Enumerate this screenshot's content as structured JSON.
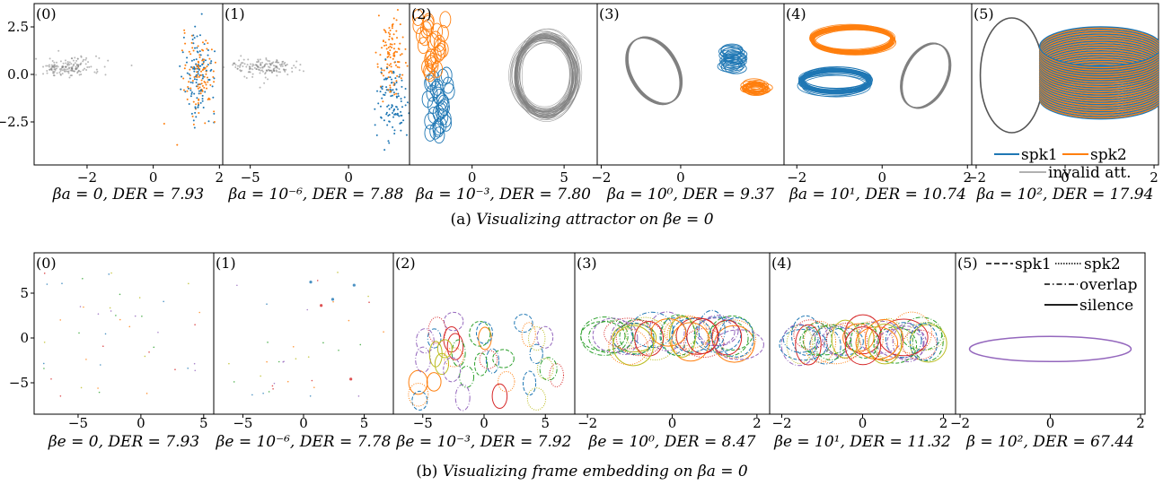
{
  "captions": {
    "a": {
      "prefix": "(a) ",
      "italic": "Visualizing attractor on ",
      "math": "βe = 0"
    },
    "b": {
      "prefix": "(b) ",
      "italic": "Visualizing frame embedding on ",
      "math": "βa = 0"
    }
  },
  "colors": {
    "spk1": "#1f77b4",
    "spk2": "#ff7f0e",
    "invalid": "#808080",
    "c3": "#2ca02c",
    "c4": "#d62728",
    "c5": "#9467bd",
    "c6": "#17becf",
    "c7": "#bcbd22"
  },
  "chart_data": [
    {
      "row": "a",
      "type": "scatter",
      "panels": [
        {
          "label": "(0)",
          "xlabel": "βa = 0, DER = 7.93",
          "xticks": [
            "−2",
            "0",
            "2"
          ],
          "yticks": [
            "2.5",
            "0.0",
            "−2.5"
          ],
          "xlim": [
            -3.6,
            2.1
          ],
          "ylim": [
            -4.5,
            3.6
          ],
          "style": "points"
        },
        {
          "label": "(1)",
          "xlabel": "βa = 10⁻⁶, DER = 7.88",
          "xticks": [
            "−5",
            "0"
          ],
          "yticks": [],
          "xlim": [
            -6.4,
            3.1
          ],
          "ylim": [
            -4.5,
            3.6
          ],
          "style": "points"
        },
        {
          "label": "(2)",
          "xlabel": "βa = 10⁻³, DER = 7.80",
          "xticks": [
            "0",
            "5"
          ],
          "yticks": [],
          "xlim": [
            -3.4,
            6.8
          ],
          "ylim": [
            -4.5,
            3.6
          ],
          "style": "ellipses"
        },
        {
          "label": "(3)",
          "xlabel": "βa = 10⁰, DER = 9.37",
          "xticks": [
            "−2",
            "0"
          ],
          "yticks": [],
          "xlim": [
            -2.1,
            2.6
          ],
          "ylim": [
            -4.5,
            3.6
          ],
          "style": "rings"
        },
        {
          "label": "(4)",
          "xlabel": "βa = 10¹, DER = 10.74",
          "xticks": [
            "−2",
            "0",
            "2"
          ],
          "yticks": [],
          "xlim": [
            -2.3,
            2.1
          ],
          "ylim": [
            -4.5,
            3.6
          ],
          "style": "rings"
        },
        {
          "label": "(5)",
          "xlabel": "βa = 10², DER = 17.94",
          "xticks": [
            "−2",
            "0",
            "2"
          ],
          "yticks": [],
          "xlim": [
            -2.1,
            2.1
          ],
          "ylim": [
            -4.5,
            3.6
          ],
          "style": "rings"
        }
      ],
      "legend": {
        "placement": "lower-right",
        "entries": [
          "spk1",
          "spk2",
          "invalid att."
        ]
      }
    },
    {
      "row": "b",
      "type": "scatter",
      "panels": [
        {
          "label": "(0)",
          "xlabel": "βe = 0, DER = 7.93",
          "xticks": [
            "−5",
            "0",
            "5"
          ],
          "yticks": [
            "5",
            "0",
            "−5"
          ],
          "xlim": [
            -8.5,
            5.8
          ],
          "ylim": [
            -7.8,
            9.6
          ],
          "style": "points"
        },
        {
          "label": "(1)",
          "xlabel": "βe = 10⁻⁶, DER = 7.78",
          "xticks": [
            "−5",
            "0",
            "5"
          ],
          "yticks": [],
          "xlim": [
            -7.4,
            7.4
          ],
          "ylim": [
            -7.8,
            9.6
          ],
          "style": "points"
        },
        {
          "label": "(2)",
          "xlabel": "βe = 10⁻³, DER = 7.92",
          "xticks": [
            "−5",
            "0",
            "5"
          ],
          "yticks": [],
          "xlim": [
            -7.4,
            7.4
          ],
          "ylim": [
            -7.8,
            9.6
          ],
          "style": "ellipses"
        },
        {
          "label": "(3)",
          "xlabel": "βe = 10⁰, DER = 8.47",
          "xticks": [
            "−2",
            "0",
            "2"
          ],
          "yticks": [],
          "xlim": [
            -2.3,
            2.3
          ],
          "ylim": [
            -7.8,
            9.6
          ],
          "style": "ellipses"
        },
        {
          "label": "(4)",
          "xlabel": "βe = 10¹, DER = 11.32",
          "xticks": [
            "−2",
            "0",
            "2"
          ],
          "yticks": [],
          "xlim": [
            -2.3,
            2.3
          ],
          "ylim": [
            -7.8,
            9.6
          ],
          "style": "ellipses"
        },
        {
          "label": "(5)",
          "xlabel": "β = 10², DER = 67.44",
          "xticks": [
            "−2",
            "0",
            "2"
          ],
          "yticks": [],
          "xlim": [
            -2.1,
            2.1
          ],
          "ylim": [
            -7.8,
            9.6
          ],
          "style": "single-ellipse"
        }
      ],
      "legend": {
        "placement": "upper-right",
        "entries": [
          "spk1",
          "spk2",
          "overlap",
          "silence"
        ]
      }
    }
  ]
}
